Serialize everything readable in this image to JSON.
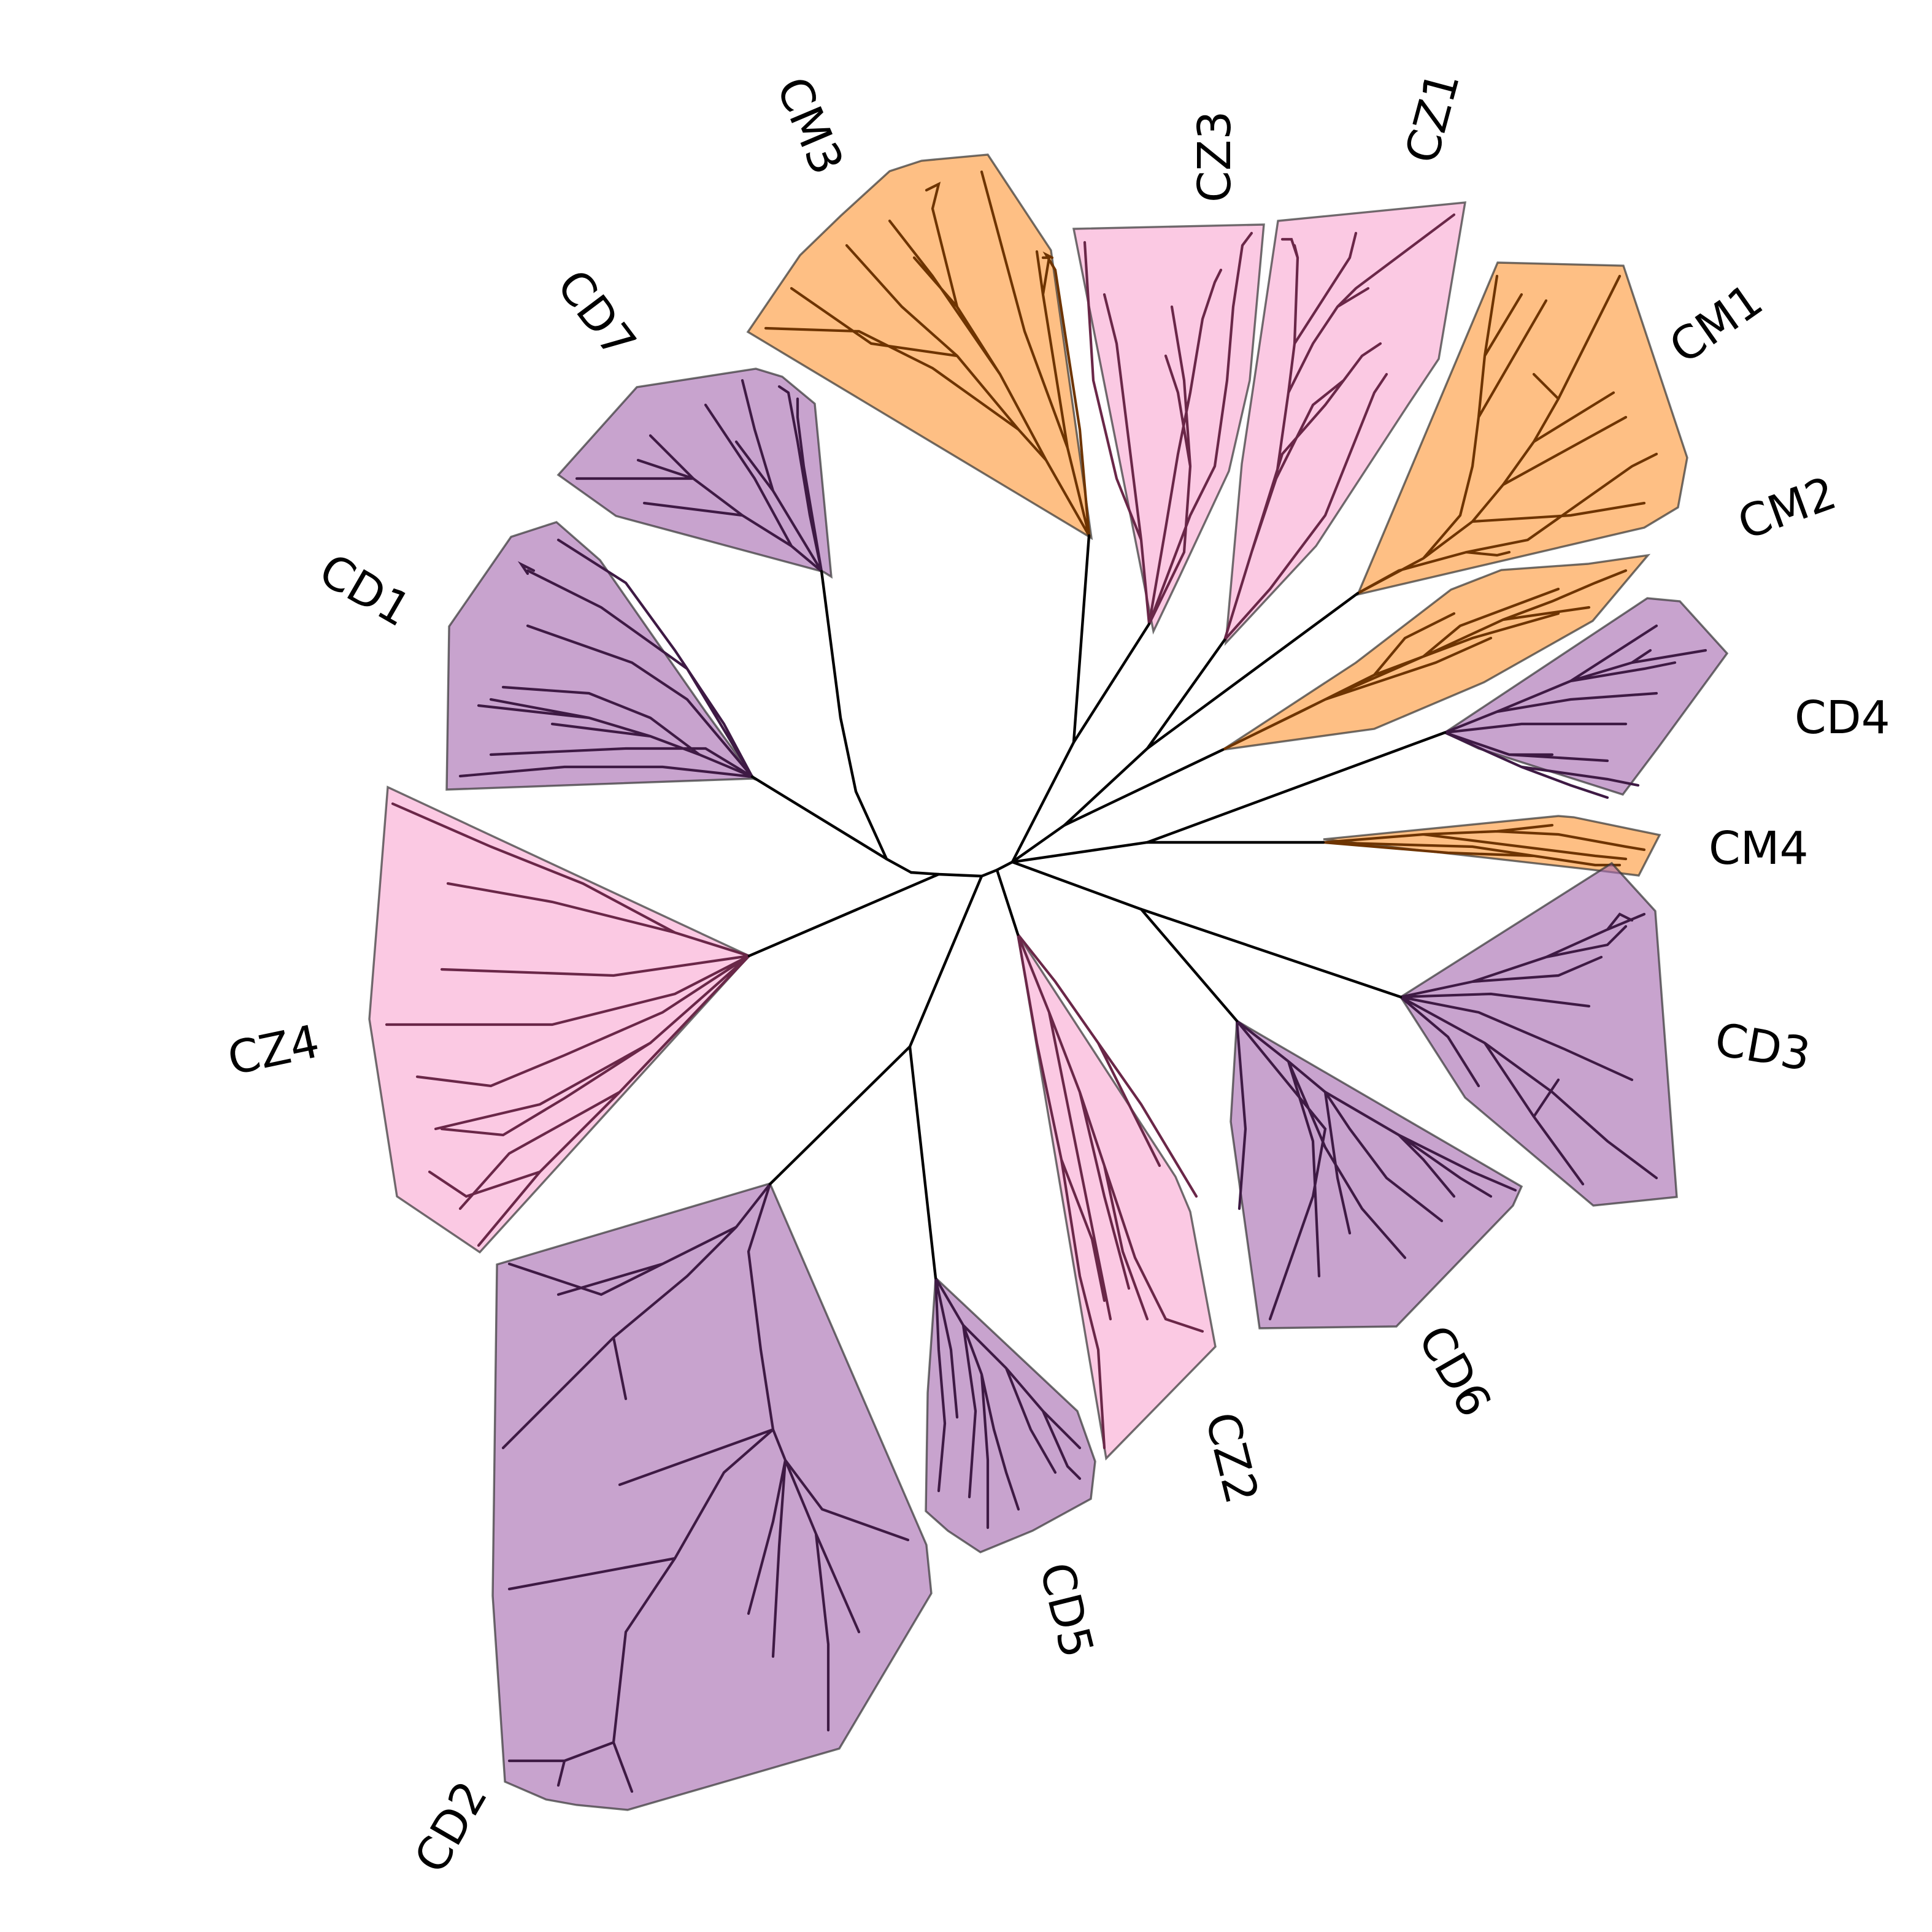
{
  "figure": {
    "type": "unrooted phylogenetic tree",
    "background": "#ffffff",
    "groups": {
      "CD": {
        "fill": "#a66bb0",
        "branch": "#3e1a44"
      },
      "CZ": {
        "fill": "#f8a8d2",
        "branch": "#6a2748"
      },
      "CM": {
        "fill": "#fd9838",
        "branch": "#6e3400"
      }
    },
    "clades": [
      {
        "name": "CM3",
        "group": "CM"
      },
      {
        "name": "CZ3",
        "group": "CZ"
      },
      {
        "name": "CZ1",
        "group": "CZ"
      },
      {
        "name": "CD7",
        "group": "CD"
      },
      {
        "name": "CM1",
        "group": "CM"
      },
      {
        "name": "CM2",
        "group": "CM"
      },
      {
        "name": "CD1",
        "group": "CD"
      },
      {
        "name": "CD4",
        "group": "CD"
      },
      {
        "name": "CM4",
        "group": "CM"
      },
      {
        "name": "CZ4",
        "group": "CZ"
      },
      {
        "name": "CD3",
        "group": "CD"
      },
      {
        "name": "CD6",
        "group": "CD"
      },
      {
        "name": "CZ2",
        "group": "CZ"
      },
      {
        "name": "CD5",
        "group": "CD"
      },
      {
        "name": "CD2",
        "group": "CD"
      }
    ]
  }
}
